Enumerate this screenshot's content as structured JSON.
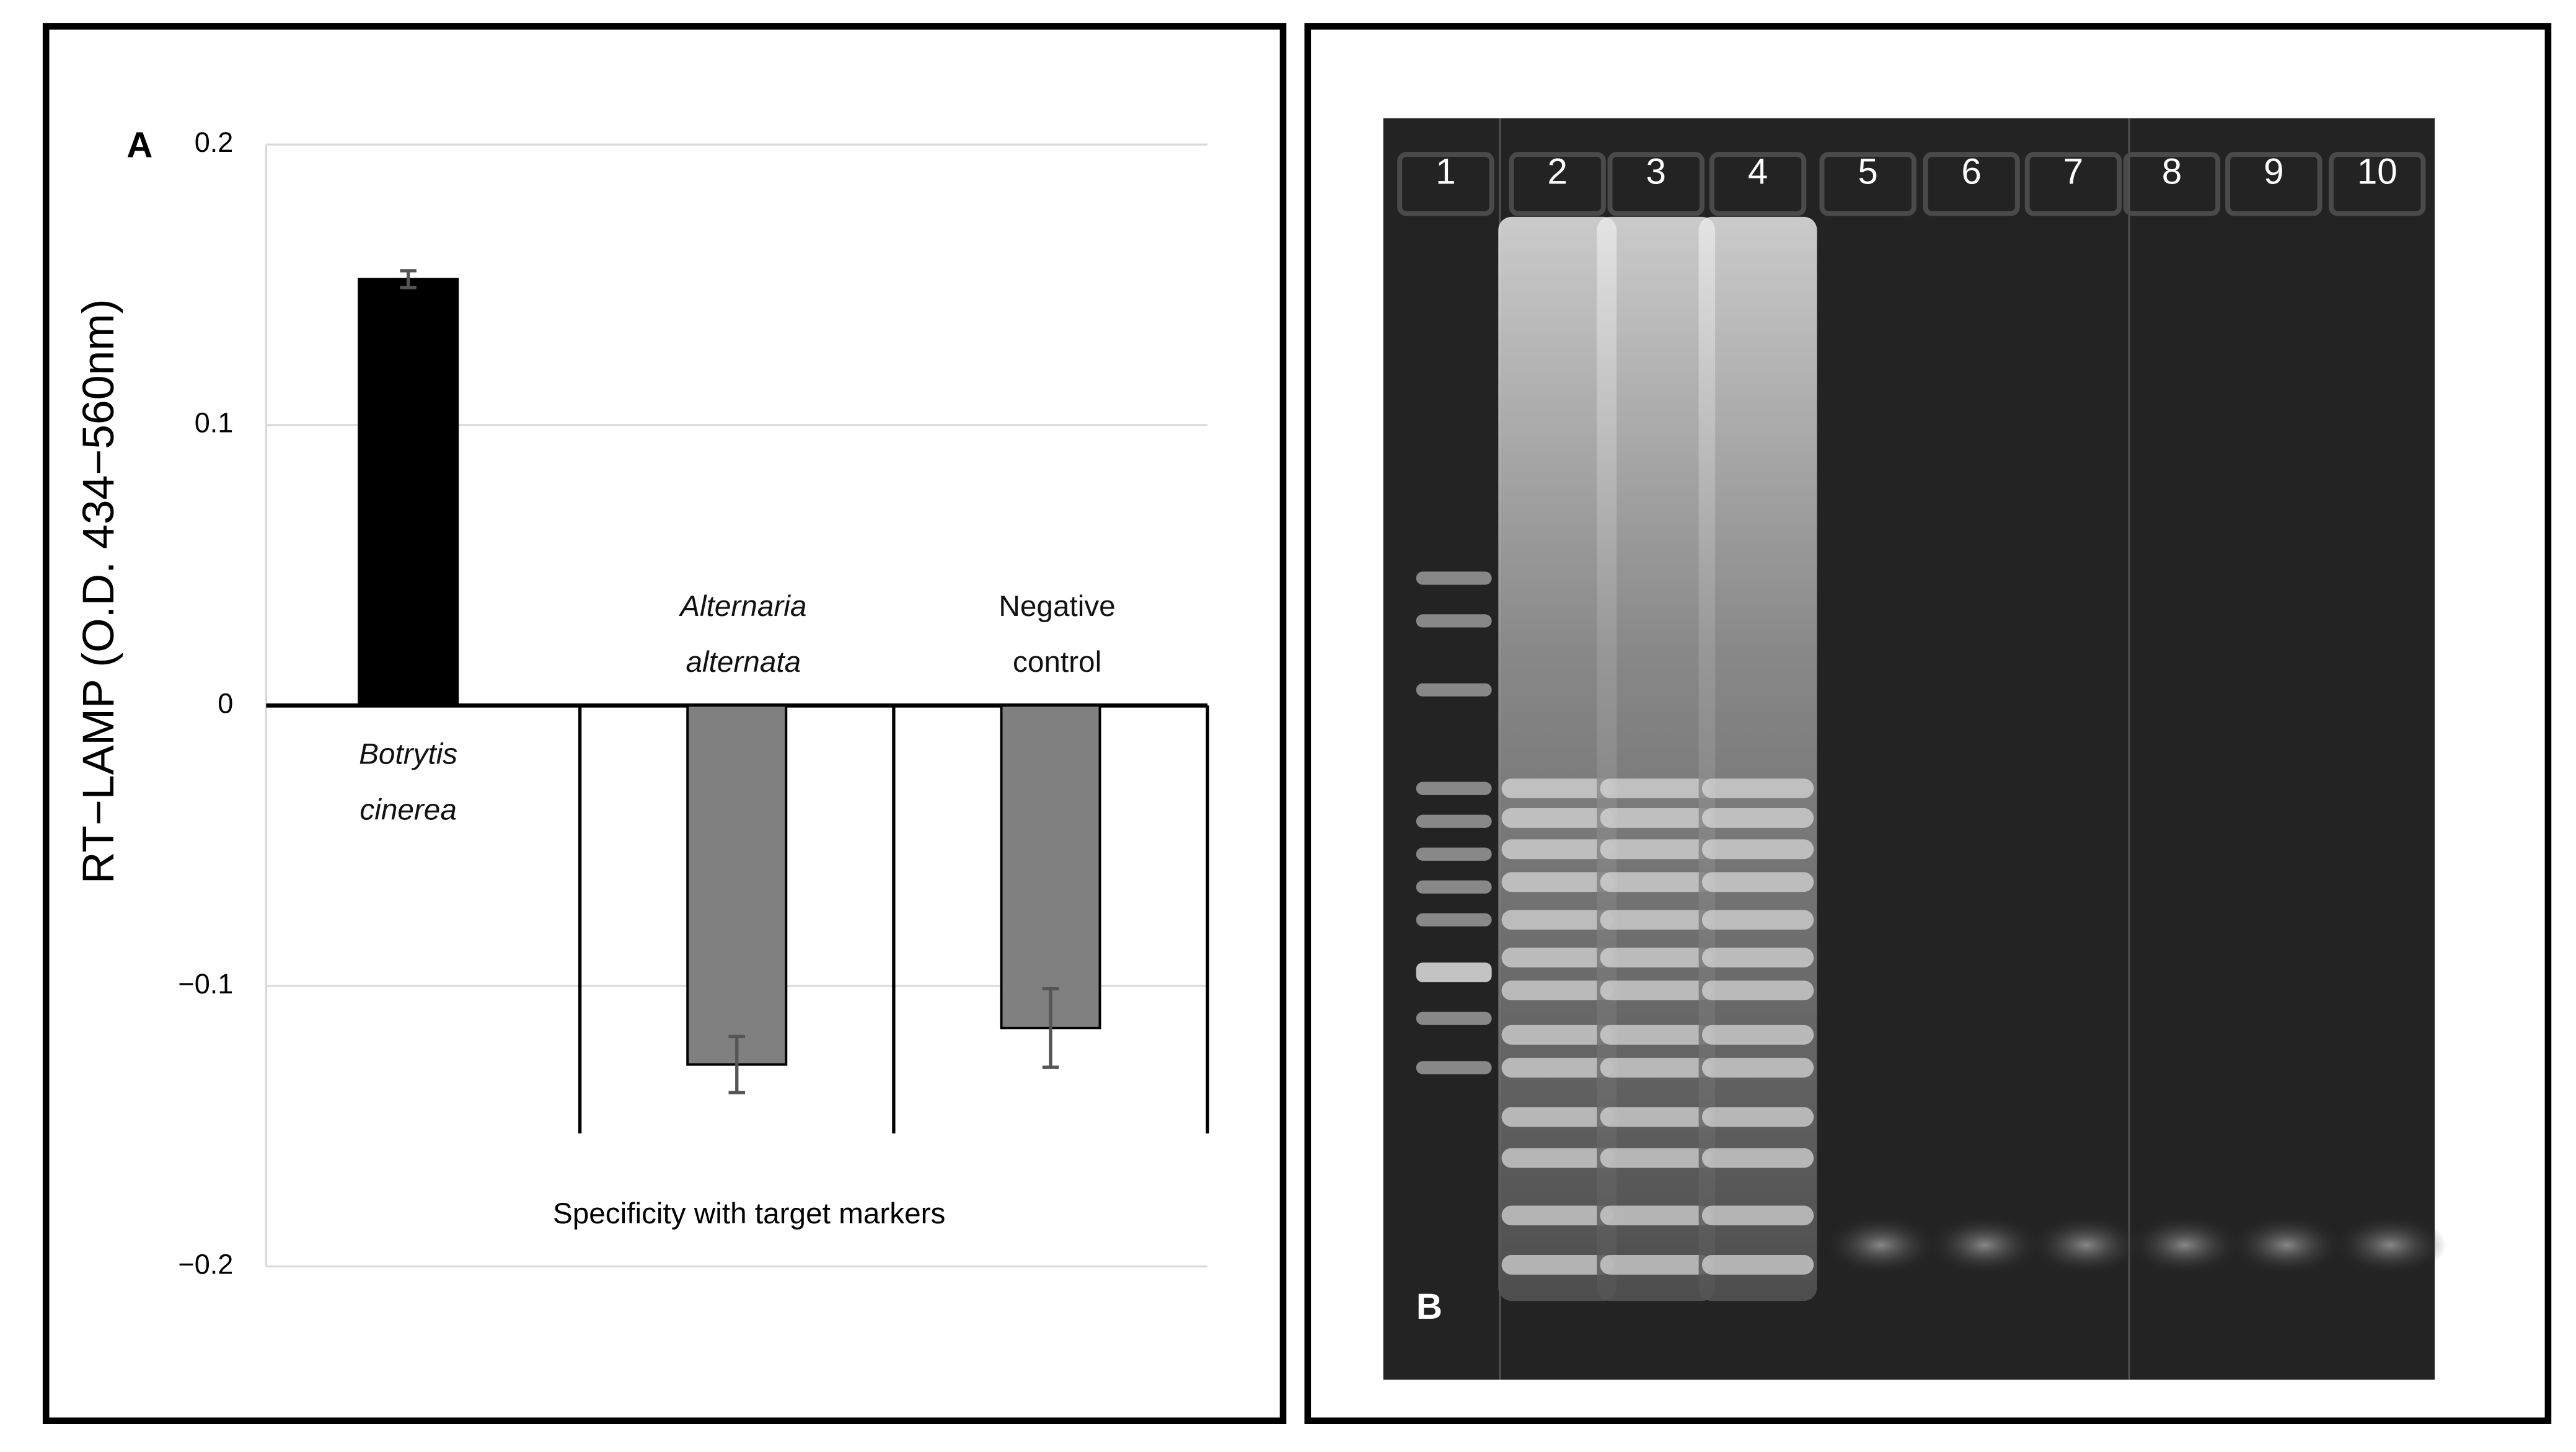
{
  "chart_data": {
    "type": "bar",
    "panel_label": "A",
    "y_label": "RT−LAMP (O.D. 434−560nm)",
    "x_label": "Specificity with target markers",
    "categories": [
      "Botrytis cinerea",
      "Alternaria alternata",
      "Negative control"
    ],
    "values": [
      0.152,
      -0.128,
      -0.115
    ],
    "errors": [
      0.003,
      0.01,
      0.014
    ],
    "colors": [
      "#000000",
      "#808080",
      "#808080"
    ],
    "ylim": [
      -0.2,
      0.2
    ],
    "yticks": [
      0.2,
      0.1,
      0,
      {
        "value": -0.1,
        "label": "−0.1"
      },
      {
        "value": -0.2,
        "label": "−0.2"
      }
    ],
    "grid": true
  },
  "gel": {
    "panel_label": "B",
    "lanes": [
      "1",
      "2",
      "3",
      "4",
      "5",
      "6",
      "7",
      "8",
      "9",
      "10"
    ]
  }
}
